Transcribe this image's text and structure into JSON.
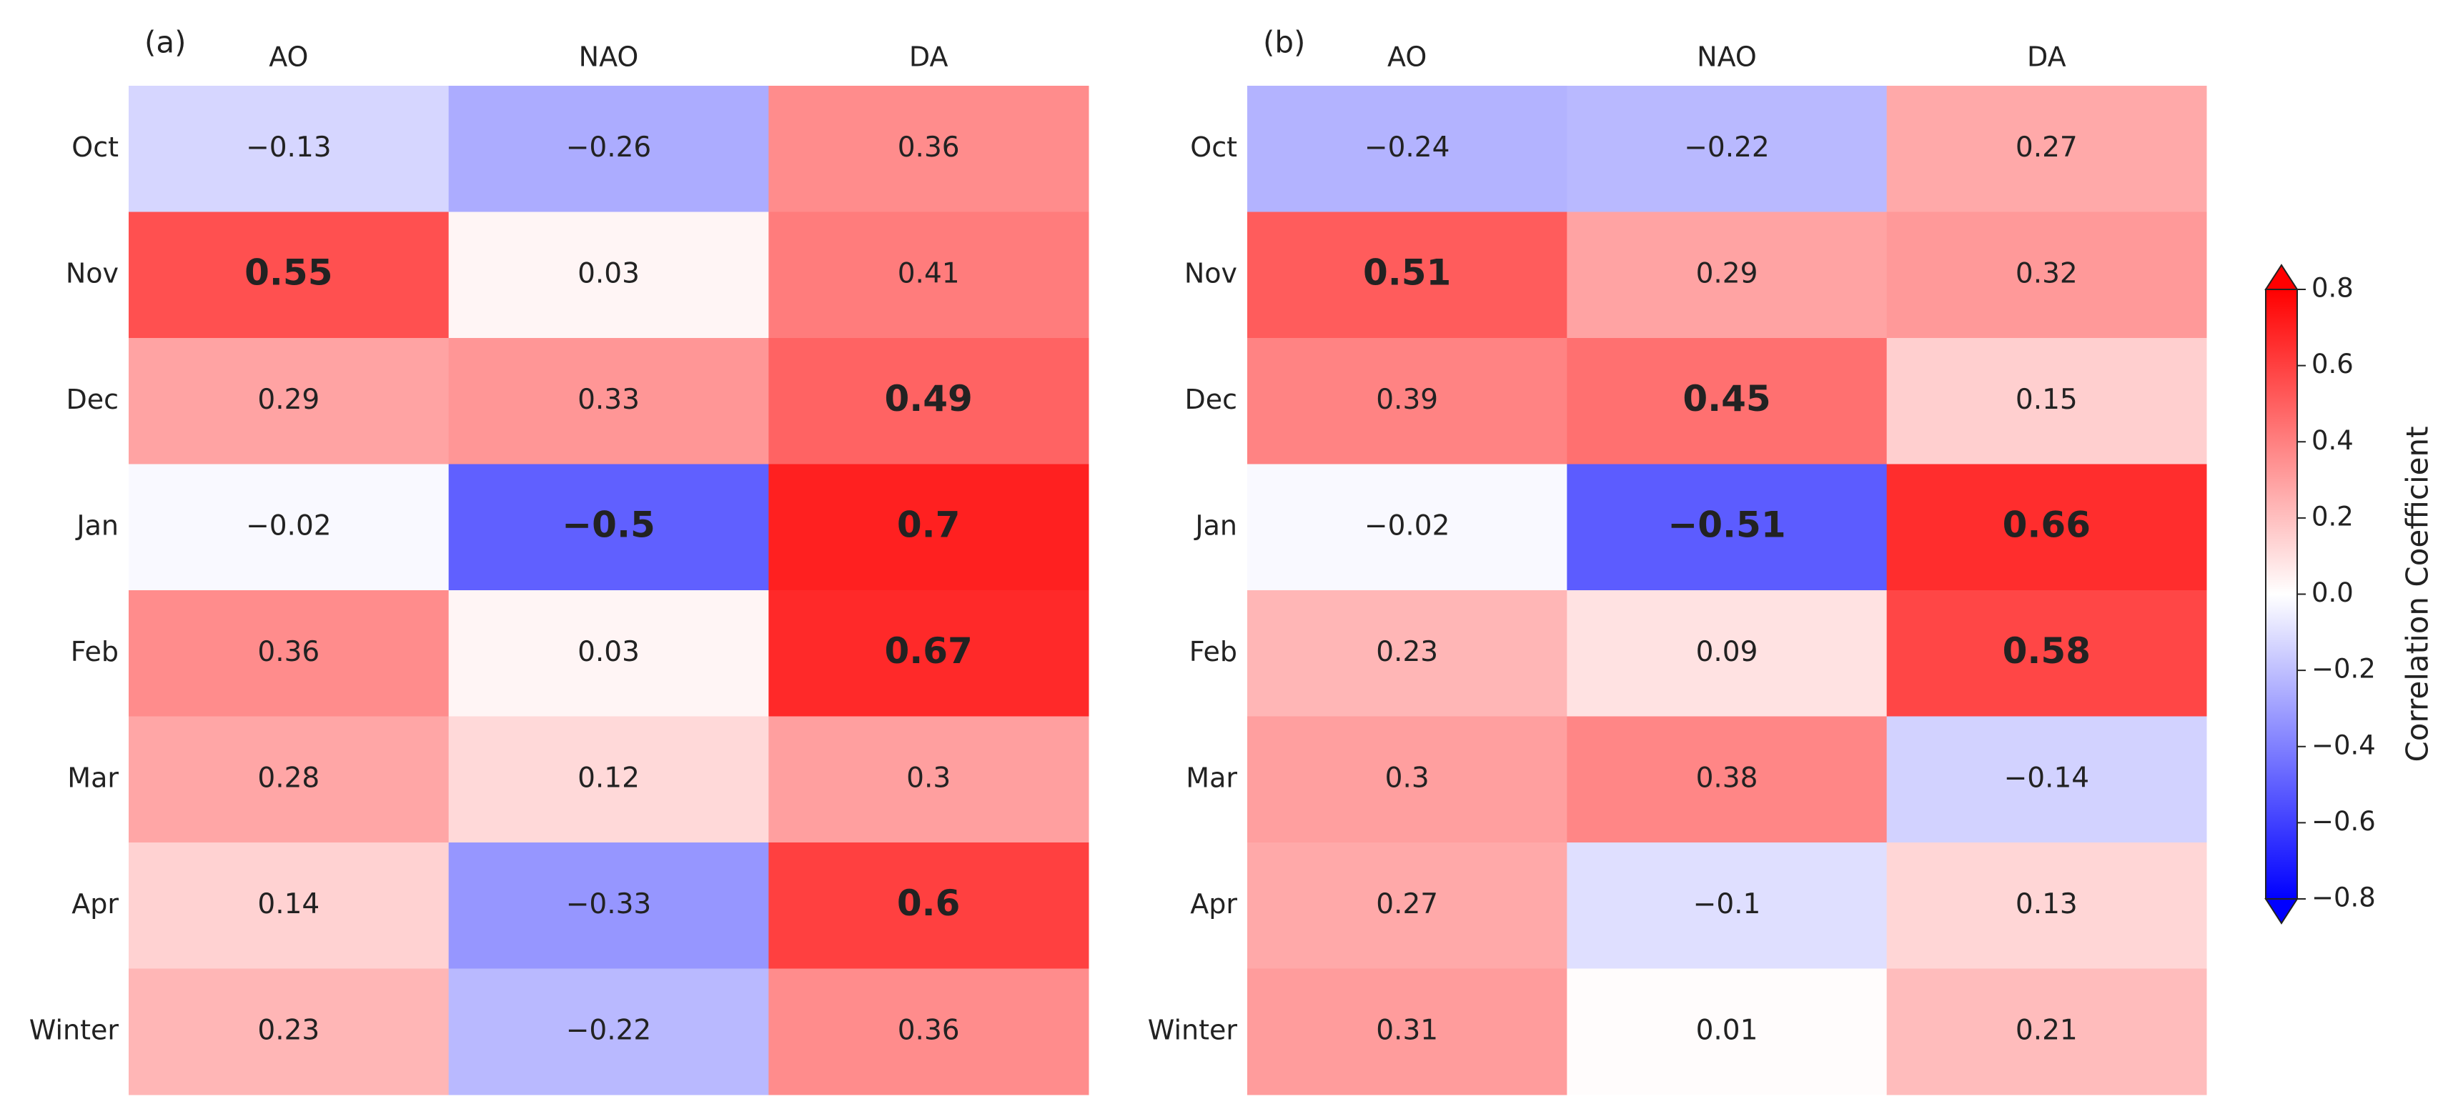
{
  "chart_data": [
    {
      "type": "heatmap",
      "panel_label": "(a)",
      "x_categories": [
        "AO",
        "NAO",
        "DA"
      ],
      "y_categories": [
        "Oct",
        "Nov",
        "Dec",
        "Jan",
        "Feb",
        "Mar",
        "Apr",
        "Winter"
      ],
      "values": [
        [
          -0.13,
          -0.26,
          0.36
        ],
        [
          0.55,
          0.03,
          0.41
        ],
        [
          0.29,
          0.33,
          0.49
        ],
        [
          -0.02,
          -0.5,
          0.7
        ],
        [
          0.36,
          0.03,
          0.67
        ],
        [
          0.28,
          0.12,
          0.3
        ],
        [
          0.14,
          -0.33,
          0.6
        ],
        [
          0.23,
          -0.22,
          0.36
        ]
      ],
      "value_labels": [
        [
          "−0.13",
          "−0.26",
          "0.36"
        ],
        [
          "0.55",
          "0.03",
          "0.41"
        ],
        [
          "0.29",
          "0.33",
          "0.49"
        ],
        [
          "−0.02",
          "−0.5",
          "0.7"
        ],
        [
          "0.36",
          "0.03",
          "0.67"
        ],
        [
          "0.28",
          "0.12",
          "0.3"
        ],
        [
          "0.14",
          "−0.33",
          "0.6"
        ],
        [
          "0.23",
          "−0.22",
          "0.36"
        ]
      ],
      "bold": [
        [
          false,
          false,
          false
        ],
        [
          true,
          false,
          false
        ],
        [
          false,
          false,
          true
        ],
        [
          false,
          true,
          true
        ],
        [
          false,
          false,
          true
        ],
        [
          false,
          false,
          false
        ],
        [
          false,
          false,
          true
        ],
        [
          false,
          false,
          false
        ]
      ]
    },
    {
      "type": "heatmap",
      "panel_label": "(b)",
      "x_categories": [
        "AO",
        "NAO",
        "DA"
      ],
      "y_categories": [
        "Oct",
        "Nov",
        "Dec",
        "Jan",
        "Feb",
        "Mar",
        "Apr",
        "Winter"
      ],
      "values": [
        [
          -0.24,
          -0.22,
          0.27
        ],
        [
          0.51,
          0.29,
          0.32
        ],
        [
          0.39,
          0.45,
          0.15
        ],
        [
          -0.02,
          -0.51,
          0.66
        ],
        [
          0.23,
          0.09,
          0.58
        ],
        [
          0.3,
          0.38,
          -0.14
        ],
        [
          0.27,
          -0.1,
          0.13
        ],
        [
          0.31,
          0.01,
          0.21
        ]
      ],
      "value_labels": [
        [
          "−0.24",
          "−0.22",
          "0.27"
        ],
        [
          "0.51",
          "0.29",
          "0.32"
        ],
        [
          "0.39",
          "0.45",
          "0.15"
        ],
        [
          "−0.02",
          "−0.51",
          "0.66"
        ],
        [
          "0.23",
          "0.09",
          "0.58"
        ],
        [
          "0.3",
          "0.38",
          "−0.14"
        ],
        [
          "0.27",
          "−0.1",
          "0.13"
        ],
        [
          "0.31",
          "0.01",
          "0.21"
        ]
      ],
      "bold": [
        [
          false,
          false,
          false
        ],
        [
          true,
          false,
          false
        ],
        [
          false,
          true,
          false
        ],
        [
          false,
          true,
          true
        ],
        [
          false,
          false,
          true
        ],
        [
          false,
          false,
          false
        ],
        [
          false,
          false,
          false
        ],
        [
          false,
          false,
          false
        ]
      ],
      "colorbar": {
        "label": "Correlation Coefficient",
        "cmap": "bwr",
        "lim": [
          -0.8,
          0.8
        ],
        "ticks": [
          {
            "value": -0.8,
            "label": "−0.8"
          },
          {
            "value": -0.6,
            "label": "−0.6"
          },
          {
            "value": -0.4,
            "label": "−0.4"
          },
          {
            "value": -0.2,
            "label": "−0.2"
          },
          {
            "value": 0.0,
            "label": "0.0"
          },
          0.2,
          0.4,
          0.6,
          0.8
        ]
      }
    }
  ]
}
